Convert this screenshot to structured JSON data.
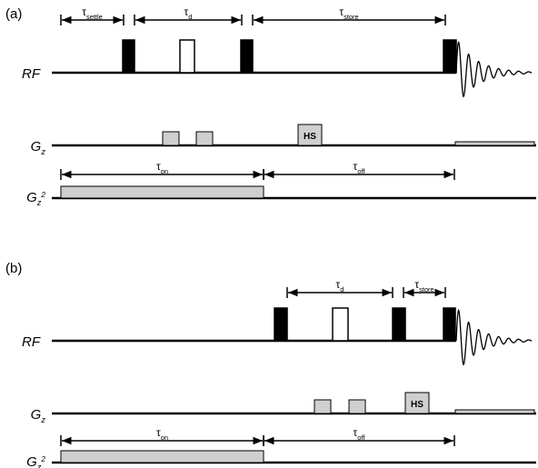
{
  "panels": [
    {
      "label": "(a)",
      "timings": [
        {
          "main": "τ",
          "sub": "settle"
        },
        {
          "main": "τ",
          "sub": "d"
        },
        {
          "main": "τ",
          "sub": "store"
        }
      ],
      "rows": [
        {
          "main": "RF"
        },
        {
          "main": "G",
          "sub": "z"
        },
        {
          "main": "G",
          "sub": "z",
          "sup": "2"
        }
      ],
      "hs": "HS",
      "gradient_timings": [
        {
          "main": "τ",
          "sub": "on"
        },
        {
          "main": "τ",
          "sub": "off"
        }
      ]
    },
    {
      "label": "(b)",
      "timings": [
        {
          "main": "τ",
          "sub": "d"
        },
        {
          "main": "τ",
          "sub": "store"
        }
      ],
      "rows": [
        {
          "main": "RF"
        },
        {
          "main": "G",
          "sub": "z"
        },
        {
          "main": "G",
          "sub": "z",
          "sup": "2"
        }
      ],
      "hs": "HS",
      "gradient_timings": [
        {
          "main": "τ",
          "sub": "on"
        },
        {
          "main": "τ",
          "sub": "off"
        }
      ]
    }
  ]
}
